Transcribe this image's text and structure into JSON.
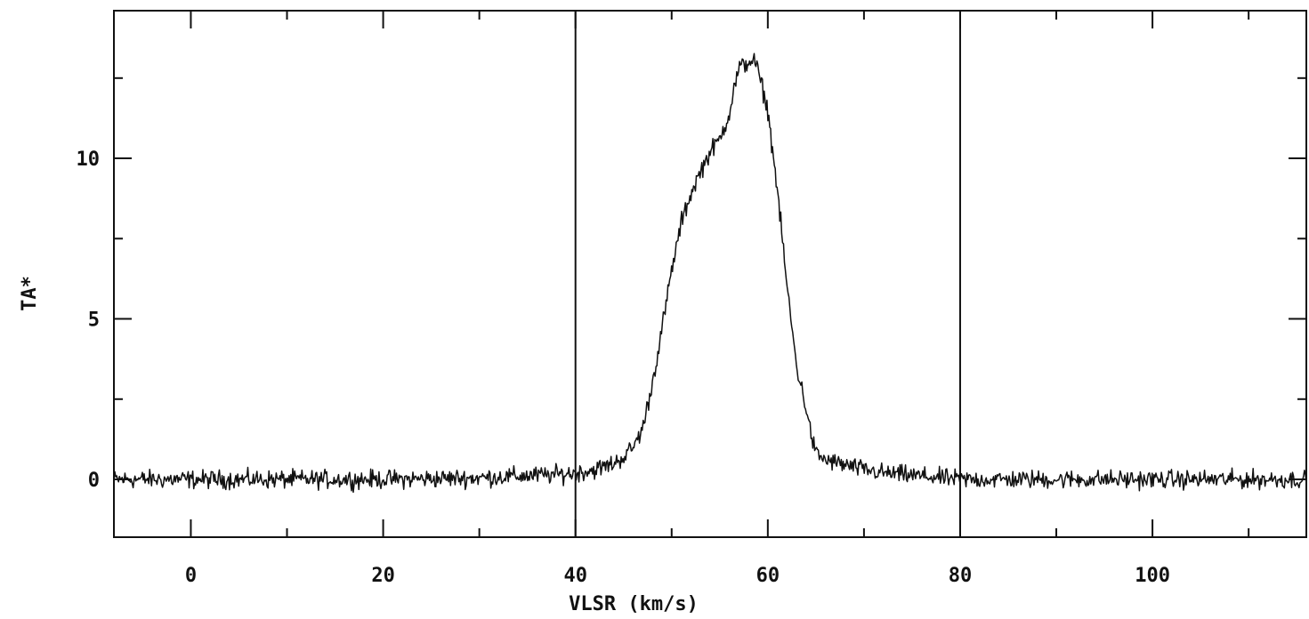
{
  "chart_data": {
    "type": "line",
    "title": "",
    "xlabel": "VLSR (km/s)",
    "ylabel": "TA*",
    "xlim": [
      -8,
      116
    ],
    "ylim": [
      -1.8,
      14.6
    ],
    "x_ticks": [
      0,
      20,
      40,
      60,
      80,
      100
    ],
    "y_ticks": [
      0,
      5,
      10
    ],
    "x_tick_labels": [
      "0",
      "20",
      "40",
      "60",
      "80",
      "100"
    ],
    "y_tick_labels": [
      "0",
      "5",
      "10"
    ],
    "x_minor_tick_step": 10,
    "y_minor_tick_step": 2.5,
    "vertical_markers": [
      40,
      80
    ],
    "grid": false,
    "legend": "none",
    "line_color": "#111111",
    "series": [
      {
        "x": [
          -8,
          0,
          10,
          20,
          30,
          38,
          40,
          42,
          44,
          45,
          46,
          47,
          47.5,
          48,
          49,
          50,
          51,
          52,
          53,
          54,
          55,
          56,
          56.5,
          57,
          58,
          58.5,
          59,
          60,
          61,
          62,
          63,
          64,
          64.5,
          65,
          66,
          68,
          70,
          72,
          76,
          80,
          90,
          100,
          110,
          116
        ],
        "values": [
          0,
          0,
          0,
          0,
          0.05,
          0.15,
          0.2,
          0.3,
          0.5,
          0.7,
          1.0,
          1.6,
          2.3,
          3.0,
          4.7,
          6.5,
          8.0,
          8.9,
          9.6,
          10.2,
          10.6,
          11.4,
          12.2,
          12.8,
          13.0,
          13.1,
          12.7,
          11.5,
          9.0,
          6.0,
          3.5,
          2.2,
          1.4,
          0.8,
          0.6,
          0.45,
          0.3,
          0.2,
          0.1,
          0,
          0,
          0,
          0,
          0
        ]
      }
    ]
  }
}
